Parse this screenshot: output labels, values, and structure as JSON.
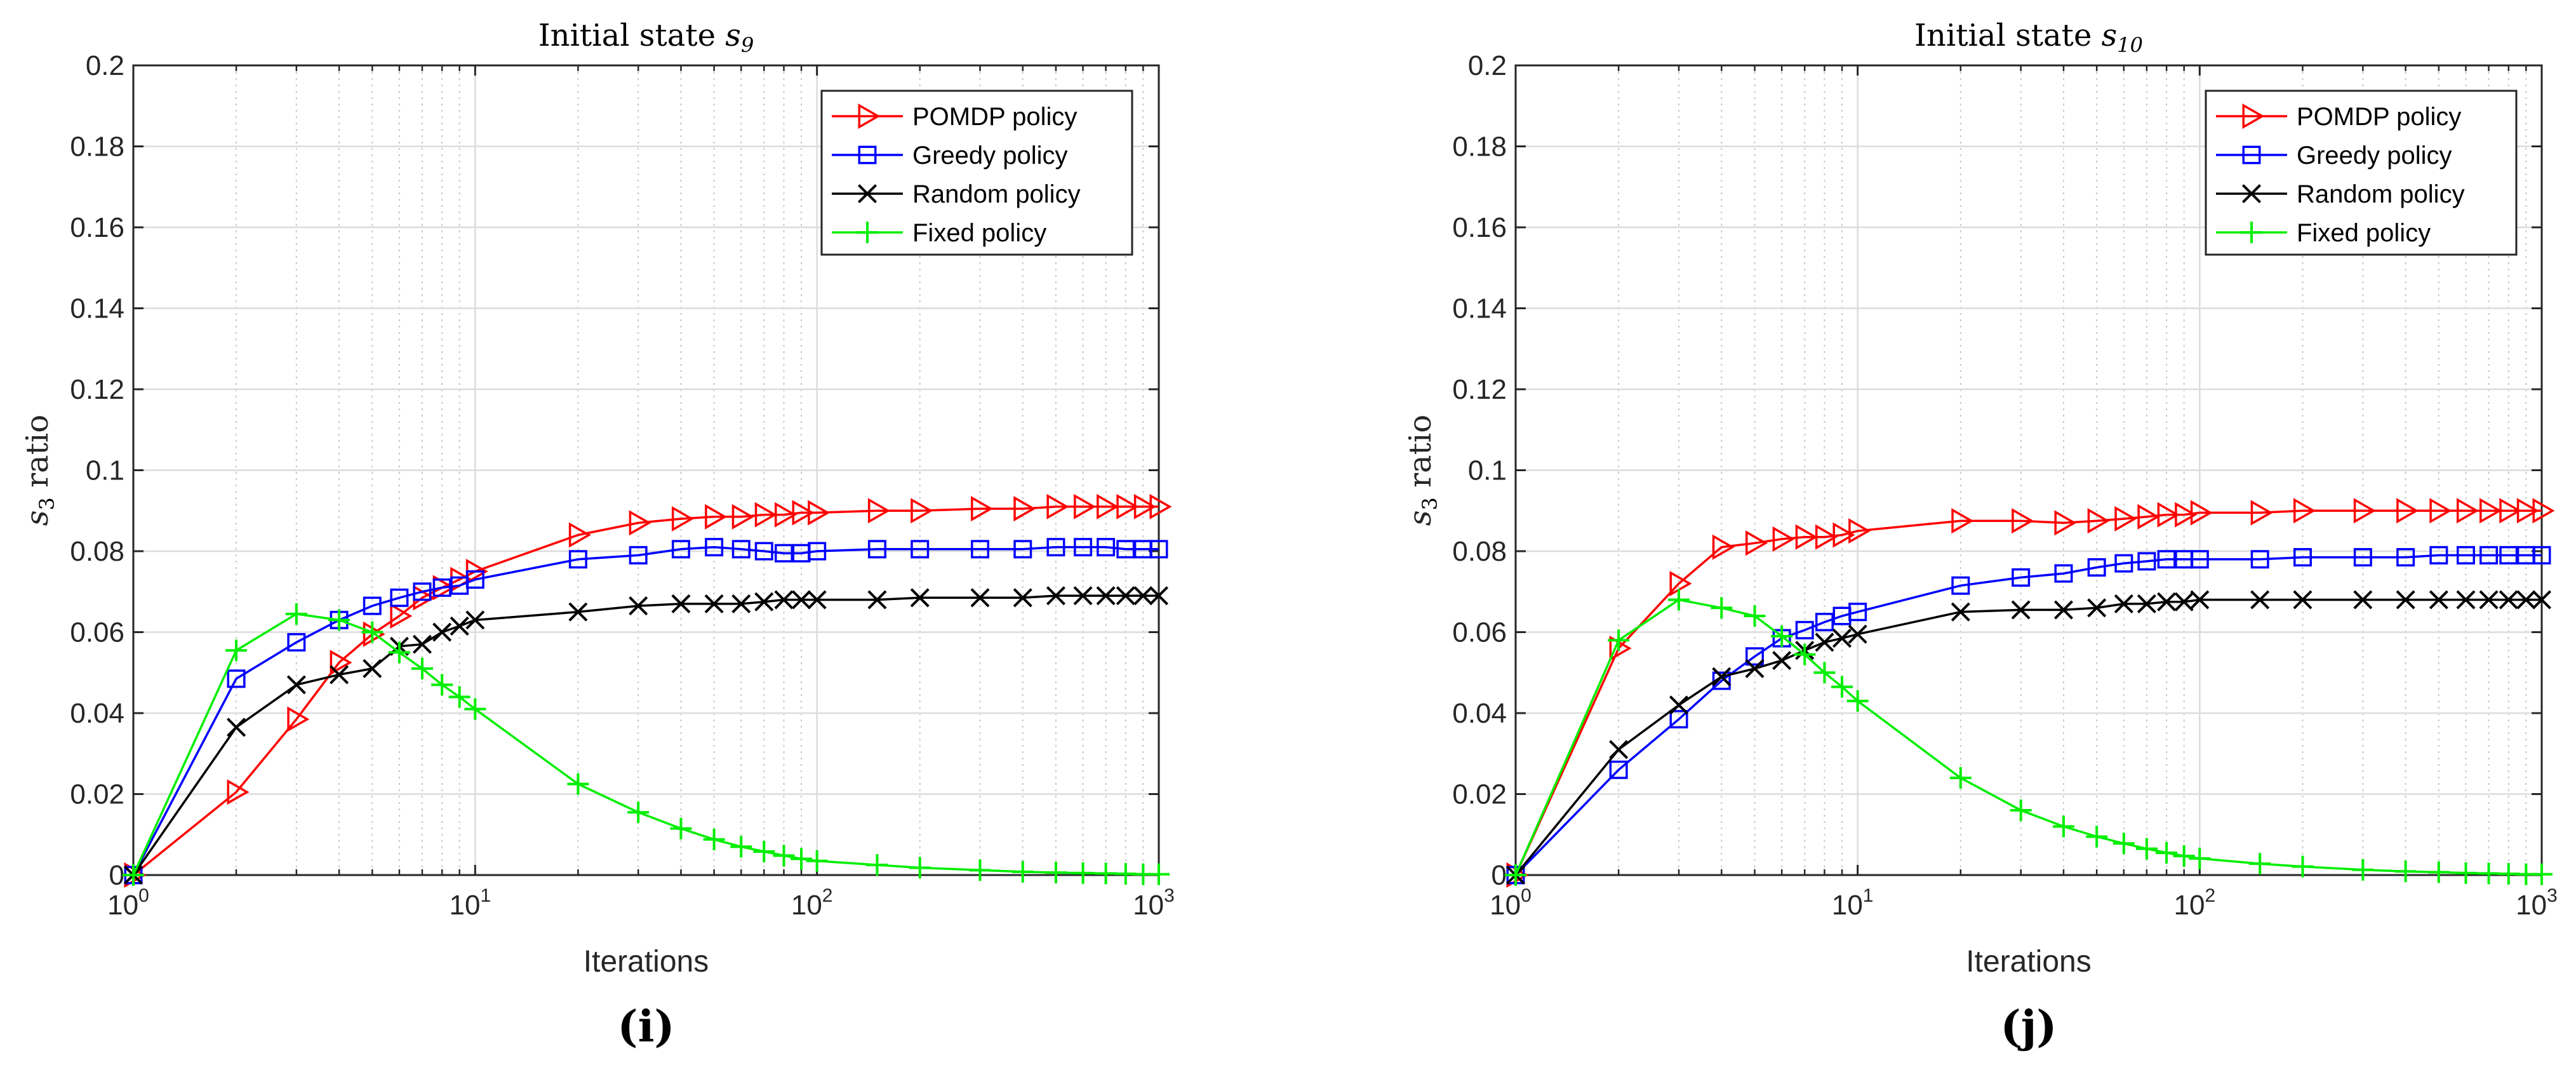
{
  "chart_data": [
    {
      "type": "line",
      "title_prefix": "Initial state ",
      "title_var": "s",
      "title_sub": "9",
      "panel_label": "(i)",
      "xlabel": "Iterations",
      "ylabel_var": "s",
      "ylabel_sub": "3",
      "ylabel_rest": " ratio",
      "xscale": "log",
      "xlim": [
        1,
        1000
      ],
      "ylim": [
        0,
        0.2
      ],
      "yticks": [
        "0",
        "0.02",
        "0.04",
        "0.06",
        "0.08",
        "0.1",
        "0.12",
        "0.14",
        "0.16",
        "0.18",
        "0.2"
      ],
      "xticks": [
        {
          "base": "10",
          "exp": "0"
        },
        {
          "base": "10",
          "exp": "1"
        },
        {
          "base": "10",
          "exp": "2"
        },
        {
          "base": "10",
          "exp": "3"
        }
      ],
      "legend_position": "top-right",
      "x": [
        1,
        2,
        3,
        4,
        5,
        6,
        7,
        8,
        9,
        10,
        20,
        30,
        40,
        50,
        60,
        70,
        80,
        90,
        100,
        150,
        200,
        300,
        400,
        500,
        600,
        700,
        800,
        900,
        1000
      ],
      "series": [
        {
          "name": "POMDP policy",
          "color": "#ff0000",
          "marker": "triangle-right",
          "values": [
            0,
            0.0205,
            0.0385,
            0.0525,
            0.0595,
            0.064,
            0.0685,
            0.071,
            0.073,
            0.075,
            0.084,
            0.087,
            0.088,
            0.0885,
            0.0885,
            0.089,
            0.089,
            0.0895,
            0.0895,
            0.09,
            0.09,
            0.0905,
            0.0905,
            0.091,
            0.091,
            0.091,
            0.091,
            0.091,
            0.091
          ]
        },
        {
          "name": "Greedy policy",
          "color": "#0000ff",
          "marker": "square",
          "values": [
            0,
            0.0485,
            0.0575,
            0.063,
            0.0665,
            0.0685,
            0.07,
            0.071,
            0.0715,
            0.073,
            0.078,
            0.079,
            0.0805,
            0.081,
            0.0805,
            0.08,
            0.0795,
            0.0795,
            0.08,
            0.0805,
            0.0805,
            0.0805,
            0.0805,
            0.081,
            0.081,
            0.081,
            0.0805,
            0.0805,
            0.0805
          ]
        },
        {
          "name": "Random policy",
          "color": "#000000",
          "marker": "x",
          "values": [
            0,
            0.0365,
            0.047,
            0.0495,
            0.051,
            0.0565,
            0.057,
            0.06,
            0.0615,
            0.063,
            0.065,
            0.0665,
            0.067,
            0.067,
            0.067,
            0.0675,
            0.068,
            0.068,
            0.068,
            0.068,
            0.0685,
            0.0685,
            0.0685,
            0.069,
            0.069,
            0.069,
            0.069,
            0.069,
            0.069
          ]
        },
        {
          "name": "Fixed policy",
          "color": "#00ee00",
          "marker": "plus",
          "values": [
            0,
            0.0555,
            0.0645,
            0.063,
            0.06,
            0.055,
            0.051,
            0.047,
            0.044,
            0.041,
            0.0225,
            0.0155,
            0.0115,
            0.0088,
            0.007,
            0.0058,
            0.0048,
            0.004,
            0.0035,
            0.0025,
            0.0018,
            0.0012,
            0.0008,
            0.0006,
            0.0005,
            0.0004,
            0.0003,
            0.0002,
            0.0002
          ]
        }
      ]
    },
    {
      "type": "line",
      "title_prefix": "Initial state ",
      "title_var": "s",
      "title_sub": "10",
      "panel_label": "(j)",
      "xlabel": "Iterations",
      "ylabel_var": "s",
      "ylabel_sub": "3",
      "ylabel_rest": " ratio",
      "xscale": "log",
      "xlim": [
        1,
        1000
      ],
      "ylim": [
        0,
        0.2
      ],
      "yticks": [
        "0",
        "0.02",
        "0.04",
        "0.06",
        "0.08",
        "0.1",
        "0.12",
        "0.14",
        "0.16",
        "0.18",
        "0.2"
      ],
      "xticks": [
        {
          "base": "10",
          "exp": "0"
        },
        {
          "base": "10",
          "exp": "1"
        },
        {
          "base": "10",
          "exp": "2"
        },
        {
          "base": "10",
          "exp": "3"
        }
      ],
      "legend_position": "top-right",
      "x": [
        1,
        2,
        3,
        4,
        5,
        6,
        7,
        8,
        9,
        10,
        20,
        30,
        40,
        50,
        60,
        70,
        80,
        90,
        100,
        150,
        200,
        300,
        400,
        500,
        600,
        700,
        800,
        900,
        1000
      ],
      "series": [
        {
          "name": "POMDP policy",
          "color": "#ff0000",
          "marker": "triangle-right",
          "values": [
            0,
            0.056,
            0.072,
            0.081,
            0.082,
            0.083,
            0.0835,
            0.0835,
            0.084,
            0.085,
            0.0875,
            0.0875,
            0.087,
            0.0875,
            0.088,
            0.0885,
            0.089,
            0.089,
            0.0895,
            0.0895,
            0.09,
            0.09,
            0.09,
            0.09,
            0.09,
            0.09,
            0.09,
            0.09,
            0.09
          ]
        },
        {
          "name": "Greedy policy",
          "color": "#0000ff",
          "marker": "square",
          "values": [
            0,
            0.026,
            0.0385,
            0.048,
            0.054,
            0.0585,
            0.0605,
            0.0625,
            0.064,
            0.065,
            0.0715,
            0.0735,
            0.0745,
            0.076,
            0.077,
            0.0775,
            0.078,
            0.078,
            0.078,
            0.078,
            0.0785,
            0.0785,
            0.0785,
            0.079,
            0.079,
            0.079,
            0.079,
            0.079,
            0.079
          ]
        },
        {
          "name": "Random policy",
          "color": "#000000",
          "marker": "x",
          "values": [
            0,
            0.031,
            0.042,
            0.049,
            0.051,
            0.053,
            0.0555,
            0.0575,
            0.0585,
            0.0595,
            0.065,
            0.0655,
            0.0655,
            0.066,
            0.067,
            0.067,
            0.0675,
            0.0675,
            0.068,
            0.068,
            0.068,
            0.068,
            0.068,
            0.068,
            0.068,
            0.068,
            0.068,
            0.068,
            0.068
          ]
        },
        {
          "name": "Fixed policy",
          "color": "#00ee00",
          "marker": "plus",
          "values": [
            0,
            0.058,
            0.068,
            0.066,
            0.064,
            0.059,
            0.0545,
            0.05,
            0.0465,
            0.043,
            0.024,
            0.016,
            0.012,
            0.0095,
            0.0078,
            0.0065,
            0.0055,
            0.0047,
            0.0041,
            0.0028,
            0.0021,
            0.0013,
            0.0009,
            0.0007,
            0.0005,
            0.0004,
            0.0003,
            0.0002,
            0.0002
          ]
        }
      ]
    }
  ]
}
